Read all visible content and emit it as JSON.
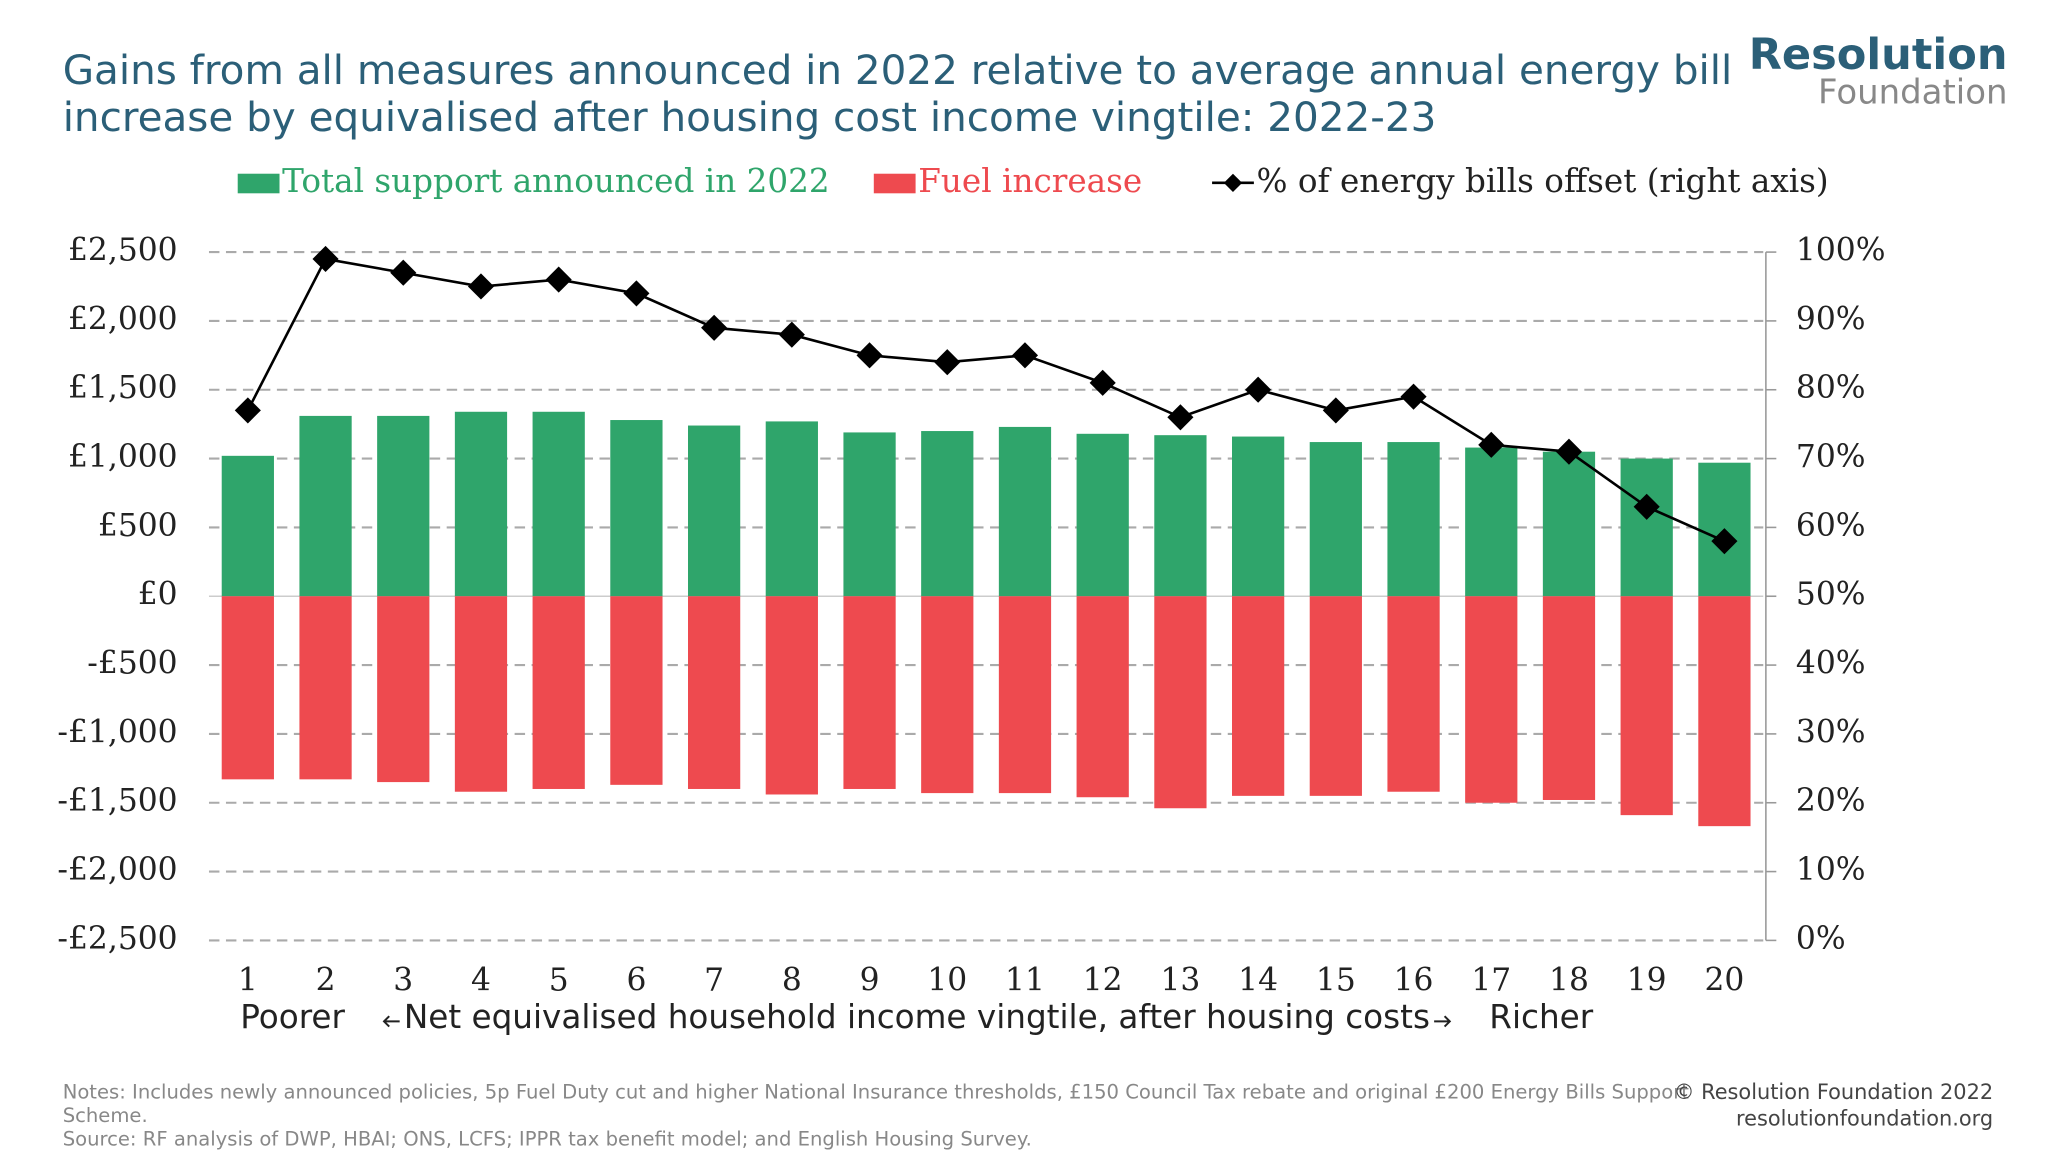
{
  "chart_data": {
    "type": "combo",
    "title": "Gains from all measures announced in 2022 relative to average annual energy bill",
    "title_line2": "increase by equivalised after housing cost income vingtile: 2022-23",
    "categories": [
      "1",
      "2",
      "3",
      "4",
      "5",
      "6",
      "7",
      "8",
      "9",
      "10",
      "11",
      "12",
      "13",
      "14",
      "15",
      "16",
      "17",
      "18",
      "19",
      "20"
    ],
    "xlabel": "Net equivalised household income vingtile, after housing costs",
    "xlabel_left": "Poorer",
    "xlabel_right": "Richer",
    "series": [
      {
        "name": "Total support announced in 2022",
        "type": "bar",
        "color": "#2fa56b",
        "values": [
          1020,
          1310,
          1310,
          1340,
          1340,
          1280,
          1240,
          1270,
          1190,
          1200,
          1230,
          1180,
          1170,
          1160,
          1120,
          1120,
          1080,
          1050,
          1000,
          970
        ]
      },
      {
        "name": "Fuel increase",
        "type": "bar",
        "color": "#ee4a4f",
        "values": [
          -1330,
          -1330,
          -1350,
          -1420,
          -1400,
          -1370,
          -1400,
          -1440,
          -1400,
          -1430,
          -1430,
          -1460,
          -1540,
          -1450,
          -1450,
          -1420,
          -1500,
          -1480,
          -1590,
          -1670
        ]
      },
      {
        "name": "% of energy bills offset (right axis)",
        "type": "line",
        "color": "#000000",
        "axis": "y2",
        "values": [
          77,
          99,
          97,
          95,
          96,
          94,
          89,
          88,
          85,
          84,
          85,
          81,
          76,
          80,
          77,
          79,
          72,
          71,
          63,
          58
        ]
      }
    ],
    "ylim": [
      -2500,
      2500
    ],
    "yticks": [
      {
        "value": -2500,
        "label": "-£2,500"
      },
      {
        "value": -2000,
        "label": "-£2,000"
      },
      {
        "value": -1500,
        "label": "-£1,500"
      },
      {
        "value": -1000,
        "label": "-£1,000"
      },
      {
        "value": -500,
        "label": "-£500"
      },
      {
        "value": 0,
        "label": "£0"
      },
      {
        "value": 500,
        "label": "£500"
      },
      {
        "value": 1000,
        "label": "£1,000"
      },
      {
        "value": 1500,
        "label": "£1,500"
      },
      {
        "value": 2000,
        "label": "£2,000"
      },
      {
        "value": 2500,
        "label": "£2,500"
      }
    ],
    "y2lim": [
      0,
      100
    ],
    "y2ticks": [
      {
        "value": 0,
        "label": "0%"
      },
      {
        "value": 10,
        "label": "10%"
      },
      {
        "value": 20,
        "label": "20%"
      },
      {
        "value": 30,
        "label": "30%"
      },
      {
        "value": 40,
        "label": "40%"
      },
      {
        "value": 50,
        "label": "50%"
      },
      {
        "value": 60,
        "label": "60%"
      },
      {
        "value": 70,
        "label": "70%"
      },
      {
        "value": 80,
        "label": "80%"
      },
      {
        "value": 90,
        "label": "90%"
      },
      {
        "value": 100,
        "label": "100%"
      }
    ],
    "grid": true
  },
  "notes": "Notes: Includes newly announced policies, 5p Fuel Duty cut and higher National Insurance thresholds, £150 Council Tax rebate and original £200 Energy Bills Support",
  "notes_line2": "Scheme.",
  "source": "Source: RF analysis of DWP, HBAI; ONS, LCFS; IPPR tax benefit model; and English Housing Survey.",
  "copyright": "© Resolution Foundation 2022",
  "website": "resolutionfoundation.org",
  "logo": {
    "line1": "Resolution",
    "line2": "Foundation"
  }
}
